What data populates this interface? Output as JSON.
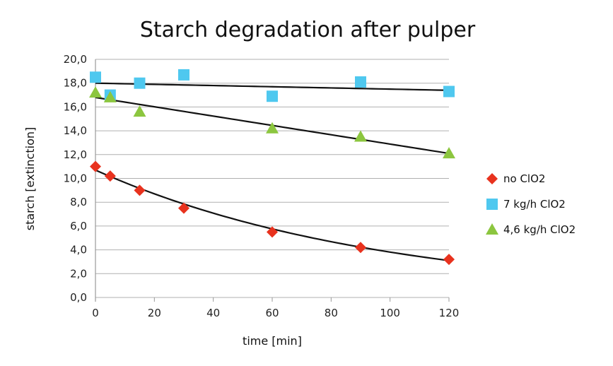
{
  "chart_data": {
    "type": "scatter",
    "title": "Starch degradation after pulper",
    "xlabel": "time [min]",
    "ylabel": "starch [extinction]",
    "xlim": [
      0,
      120
    ],
    "ylim": [
      0,
      20
    ],
    "xticks": [
      "0",
      "20",
      "40",
      "60",
      "80",
      "100",
      "120"
    ],
    "yticks": [
      "0,0",
      "2,0",
      "4,0",
      "6,0",
      "8,0",
      "10,0",
      "12,0",
      "14,0",
      "16,0",
      "18,0",
      "20,0"
    ],
    "grid": "horizontal",
    "legend_position": "right",
    "series": [
      {
        "name": "no ClO2",
        "color": "#e8321e",
        "marker": "diamond",
        "x": [
          0,
          5,
          15,
          30,
          60,
          90,
          120
        ],
        "y": [
          11.0,
          10.2,
          9.0,
          7.5,
          5.5,
          4.2,
          3.2
        ],
        "trend": {
          "type": "exponential",
          "start": 10.7,
          "end": 3.1
        }
      },
      {
        "name": "7 kg/h ClO2",
        "color": "#4fc8ef",
        "marker": "square",
        "x": [
          0,
          5,
          15,
          30,
          60,
          90,
          120
        ],
        "y": [
          18.5,
          17.0,
          18.0,
          18.7,
          16.9,
          18.1,
          17.3
        ],
        "trend": {
          "type": "linear",
          "start": 18.0,
          "end": 17.4
        }
      },
      {
        "name": "4,6 kg/h ClO2",
        "color": "#8cc63f",
        "marker": "triangle",
        "x": [
          0,
          5,
          15,
          60,
          90,
          120
        ],
        "y": [
          17.2,
          16.8,
          15.6,
          14.2,
          13.5,
          12.1
        ],
        "trend": {
          "type": "linear",
          "start": 16.8,
          "end": 12.1
        }
      }
    ]
  }
}
